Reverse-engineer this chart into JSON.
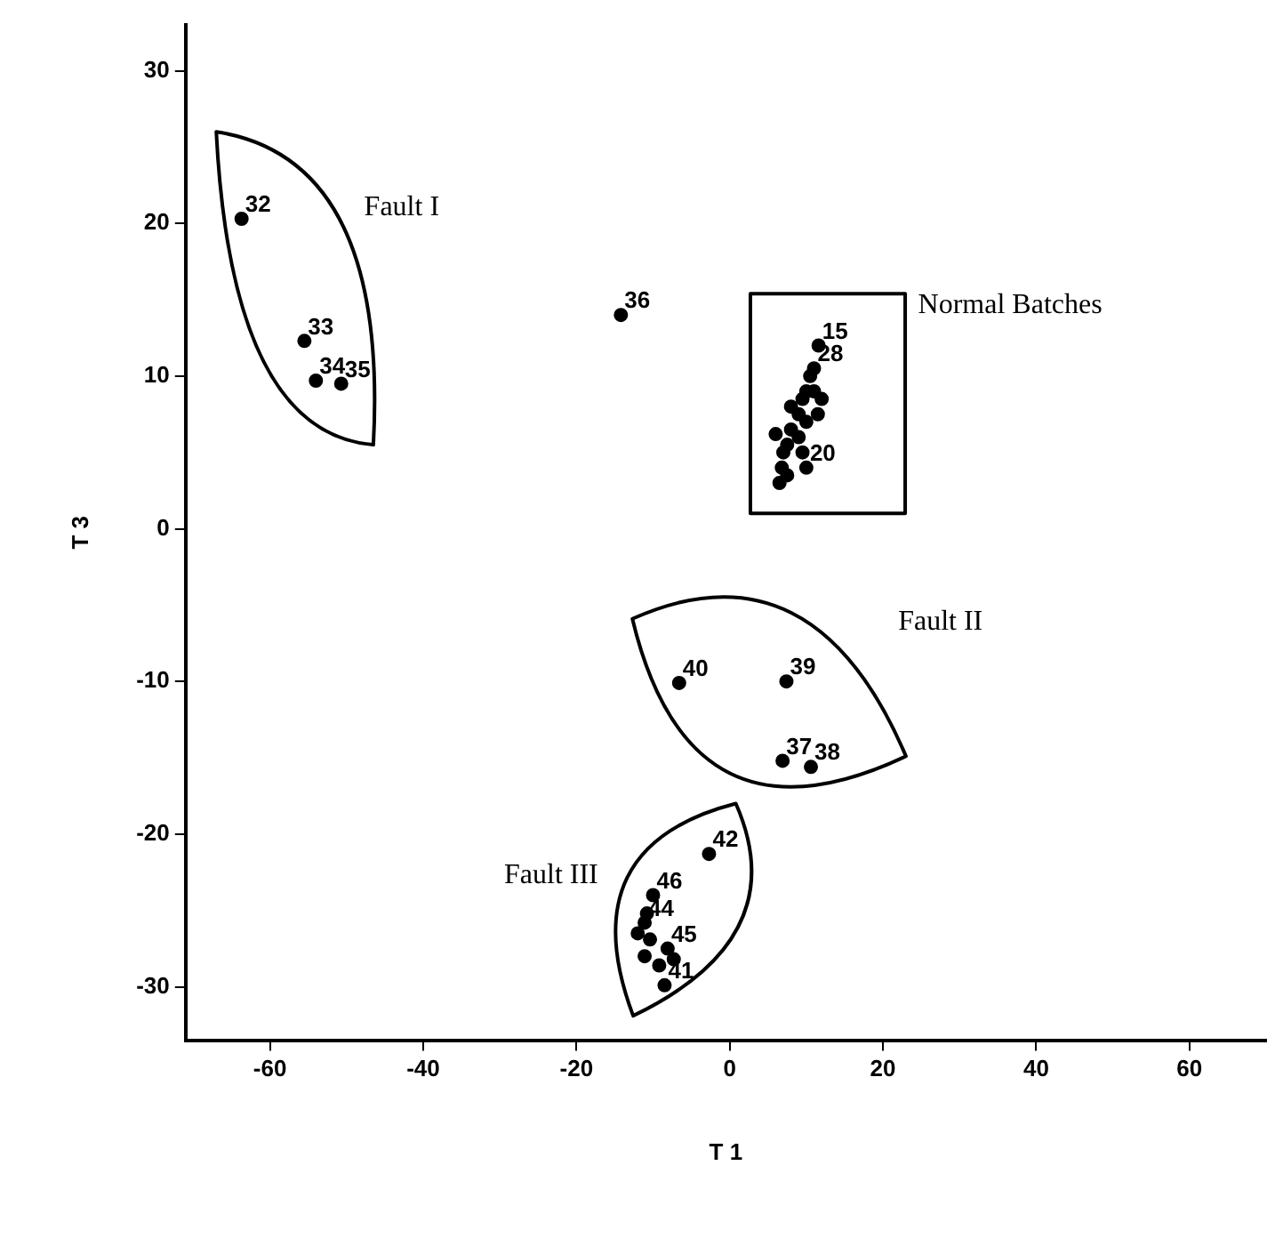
{
  "chart_data": {
    "type": "scatter",
    "xlabel": "T 1",
    "ylabel": "T 3",
    "xlim": [
      -71,
      70
    ],
    "xticks": [
      -60,
      -40,
      -20,
      0,
      20,
      40,
      60
    ],
    "ylim": [
      -33.5,
      33
    ],
    "yticks": [
      -30,
      -20,
      -10,
      0,
      10,
      20,
      30
    ],
    "grid": false,
    "legend": false,
    "marker": "circle",
    "series": [
      {
        "color": "#000000",
        "x": [
          -63.7,
          -55.5,
          -54,
          -50.7,
          -14.2,
          11.6,
          11,
          10,
          6.5,
          6.8,
          7,
          6,
          7.5,
          8,
          9,
          8,
          9.5,
          10,
          10.5,
          9,
          10,
          11.5,
          12,
          9.5,
          7.5,
          11,
          -6.6,
          7.4,
          6.9,
          10.6,
          -2.7,
          -10,
          -12,
          -8.1,
          -7.3,
          -10.8,
          -11.1,
          -10.4,
          -11.1,
          -9.2,
          -8.5
        ],
        "values": [
          20.3,
          12.3,
          9.7,
          9.5,
          14.0,
          12.0,
          10.5,
          4.0,
          3.0,
          4.0,
          5,
          6.2,
          5.5,
          6.5,
          7.5,
          8,
          8.5,
          9,
          10,
          6,
          7,
          7.5,
          8.5,
          5,
          3.5,
          9,
          -10.1,
          -10.0,
          -15.2,
          -15.6,
          -21.3,
          -24,
          -26.5,
          -27.5,
          -28.2,
          -25.2,
          -25.8,
          -26.9,
          -28,
          -28.6,
          -29.9
        ]
      }
    ],
    "annotations": [
      "Fault I",
      "Normal Batches",
      "Fault II",
      "Fault III",
      {
        "text": "32",
        "x": -63.7,
        "y": 20.3
      },
      {
        "text": "33",
        "x": -55.5,
        "y": 12.3
      },
      {
        "text": "34",
        "x": -54,
        "y": 9.7
      },
      {
        "text": "35",
        "x": -50.7,
        "y": 9.5
      },
      {
        "text": "36",
        "x": -14.2,
        "y": 14.0
      },
      {
        "text": "15",
        "x": 11.6,
        "y": 12.0
      },
      {
        "text": "28",
        "x": 11,
        "y": 10.5
      },
      {
        "text": "20",
        "x": 10,
        "y": 4.0
      },
      {
        "text": "40",
        "x": -6.6,
        "y": -10.1
      },
      {
        "text": "39",
        "x": 7.4,
        "y": -10.0
      },
      {
        "text": "37",
        "x": 6.9,
        "y": -15.2
      },
      {
        "text": "38",
        "x": 10.6,
        "y": -15.6
      },
      {
        "text": "42",
        "x": -2.7,
        "y": -21.3
      },
      {
        "text": "46",
        "x": -10,
        "y": -24
      },
      {
        "text": "44",
        "x": -11.1,
        "y": -25.8
      },
      {
        "text": "45",
        "x": -8.1,
        "y": -27.5
      },
      {
        "text": "41",
        "x": -8.5,
        "y": -29.9
      }
    ]
  }
}
